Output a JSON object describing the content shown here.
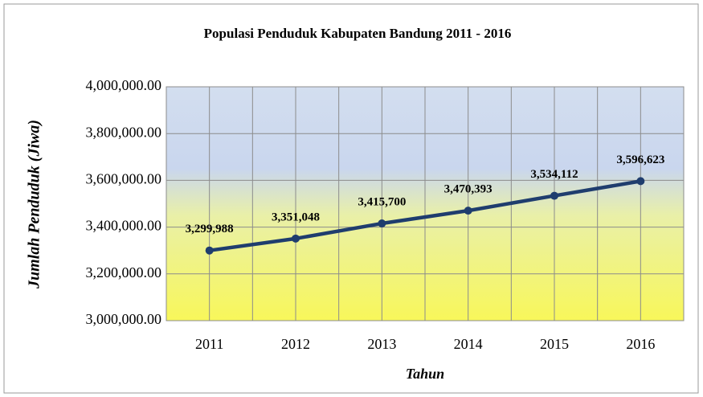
{
  "chart_data": {
    "type": "line",
    "title": "Populasi Penduduk Kabupaten Bandung 2011 - 2016",
    "x_label": "Tahun",
    "y_label": "Jumlah Penduduk (Jiwa)",
    "categories": [
      "2011",
      "2012",
      "2013",
      "2014",
      "2015",
      "2016"
    ],
    "series": [
      {
        "name": "Jumlah Penduduk",
        "color": "#1f3d6e",
        "values": [
          3299988,
          3351048,
          3415700,
          3470393,
          3534112,
          3596623
        ],
        "value_labels": [
          "3,299,988",
          "3,351,048",
          "3,415,700",
          "3,470,393",
          "3,534,112",
          "3,596,623"
        ]
      }
    ],
    "ylim": [
      3000000,
      4000000
    ],
    "yticks": [
      {
        "value": 3000000,
        "label": "3,000,000.00"
      },
      {
        "value": 3200000,
        "label": "3,200,000.00"
      },
      {
        "value": 3400000,
        "label": "3,400,000.00"
      },
      {
        "value": 3600000,
        "label": "3,600,000.00"
      },
      {
        "value": 3800000,
        "label": "3,800,000.00"
      },
      {
        "value": 4000000,
        "label": "4,000,000.00"
      }
    ],
    "grid": true
  }
}
